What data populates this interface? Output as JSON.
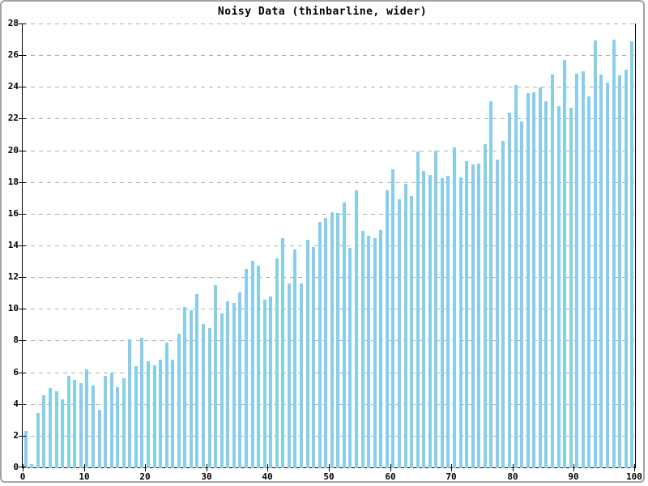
{
  "window": {
    "background": "#ffffff",
    "border_color": "#a3a3a3"
  },
  "chart_data": {
    "type": "bar",
    "title": "Noisy Data (thinbarline, wider)",
    "xlabel": "",
    "ylabel": "",
    "xlim": [
      0,
      100
    ],
    "ylim": [
      0,
      28
    ],
    "x_ticks": [
      0,
      10,
      20,
      30,
      40,
      50,
      60,
      70,
      80,
      90,
      100
    ],
    "y_ticks": [
      0,
      2,
      4,
      6,
      8,
      10,
      12,
      14,
      16,
      18,
      20,
      22,
      24,
      26,
      28
    ],
    "grid": "horizontal dashed lines at every y tick",
    "legend": "none",
    "bar_style": "thin vertical bars, ~1 unit apart, width ~0.5 unit",
    "bar_color": "#87CEEB",
    "axis_color": "#000000",
    "grid_color": "#b0b0b0",
    "x_start": 0.5,
    "x_step": 1,
    "values": [
      2.3,
      0.2,
      3.4,
      4.55,
      5.0,
      4.8,
      4.3,
      5.75,
      5.5,
      5.3,
      6.2,
      5.15,
      3.65,
      5.8,
      6.0,
      5.05,
      5.6,
      8.05,
      6.4,
      8.2,
      6.7,
      6.45,
      6.8,
      7.85,
      6.8,
      8.45,
      10.1,
      9.9,
      10.95,
      9.05,
      8.8,
      11.5,
      9.7,
      10.5,
      10.35,
      11.05,
      12.5,
      13.05,
      12.7,
      10.6,
      10.8,
      13.2,
      14.45,
      11.6,
      13.75,
      11.6,
      14.35,
      13.9,
      15.5,
      15.75,
      16.1,
      16.05,
      16.7,
      13.85,
      17.45,
      14.9,
      14.6,
      14.45,
      14.95,
      17.5,
      18.8,
      16.9,
      17.9,
      17.1,
      19.95,
      18.7,
      18.45,
      20.0,
      18.25,
      18.4,
      20.2,
      18.3,
      19.3,
      19.1,
      19.15,
      20.4,
      23.1,
      19.4,
      20.6,
      22.4,
      24.1,
      21.8,
      23.6,
      23.65,
      23.95,
      23.1,
      24.8,
      22.8,
      25.7,
      22.7,
      24.85,
      25.0,
      23.4,
      26.95,
      24.8,
      24.25,
      27.0,
      24.75,
      25.1,
      26.9
    ]
  }
}
